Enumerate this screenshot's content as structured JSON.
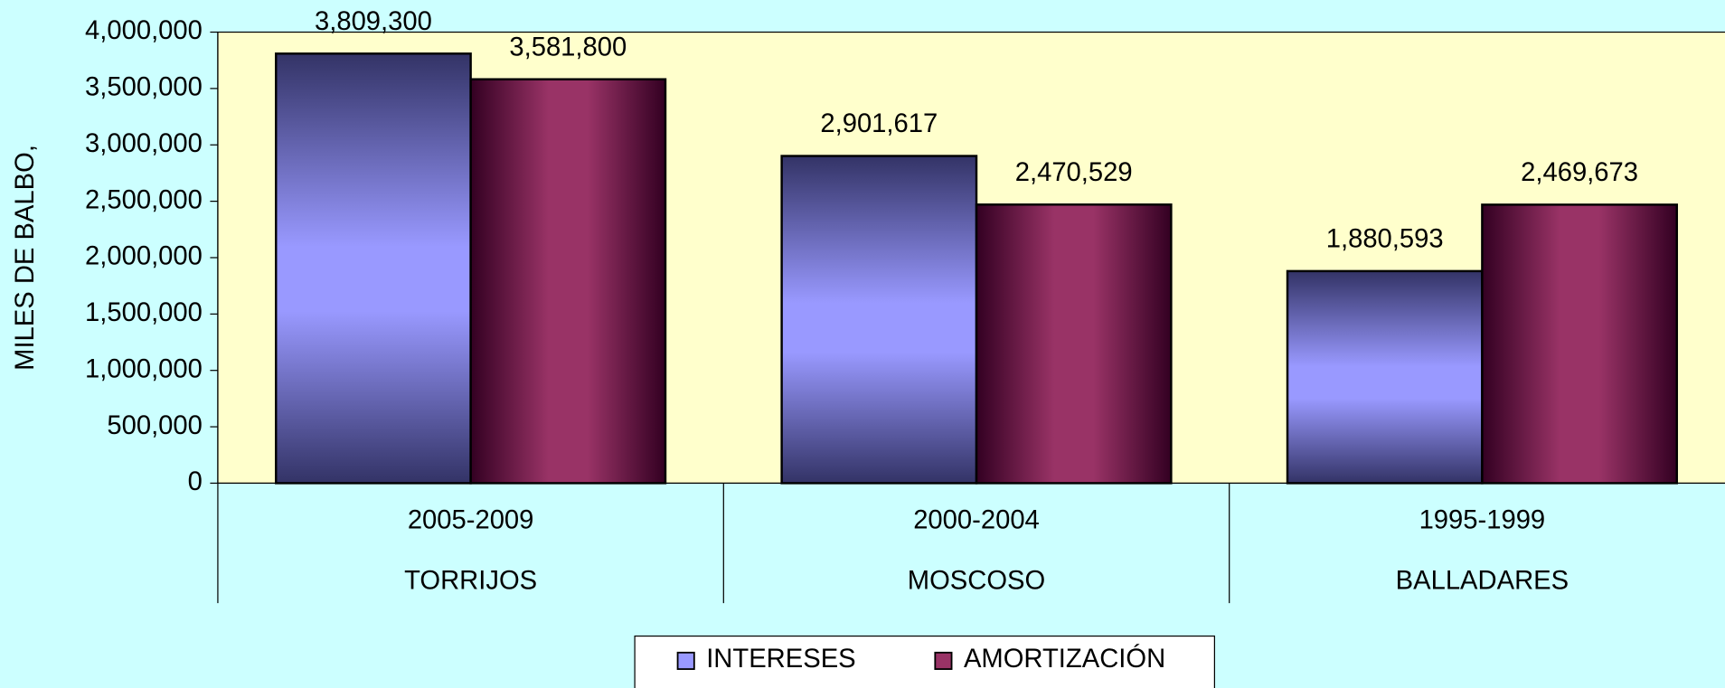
{
  "chart_data": {
    "type": "bar",
    "y_axis_label": "MILES DE BALBO,",
    "categories": [
      "2005-2009",
      "2000-2004",
      "1995-1999"
    ],
    "category_groups": [
      "TORRIJOS",
      "MOSCOSO",
      "BALLADARES"
    ],
    "series": [
      {
        "name": "INTERESES",
        "color": "#9999ff",
        "values": [
          3809300,
          2901617,
          1880593
        ],
        "value_labels": [
          "3,809,300",
          "2,901,617",
          "1,880,593"
        ]
      },
      {
        "name": "AMORTIZACIÓN",
        "color": "#993366",
        "values": [
          3581800,
          2470529,
          2469673
        ],
        "value_labels": [
          "3,581,800",
          "2,470,529",
          "2,469,673"
        ]
      }
    ],
    "ylim": [
      0,
      4000000
    ],
    "yticks": [
      0,
      {
        "value": 500000,
        "label": "500,000"
      },
      {
        "value": 1000000,
        "label": "1,000,000"
      },
      {
        "value": 1500000,
        "label": "1,500,000"
      },
      {
        "value": 2000000,
        "label": "2,000,000"
      },
      {
        "value": 2500000,
        "label": "2,500,000"
      },
      {
        "value": 3000000,
        "label": "3,000,000"
      },
      {
        "value": 3500000,
        "label": "3,500,000"
      },
      {
        "value": 4000000,
        "label": "4,000,000"
      }
    ],
    "legend": "bottom"
  }
}
